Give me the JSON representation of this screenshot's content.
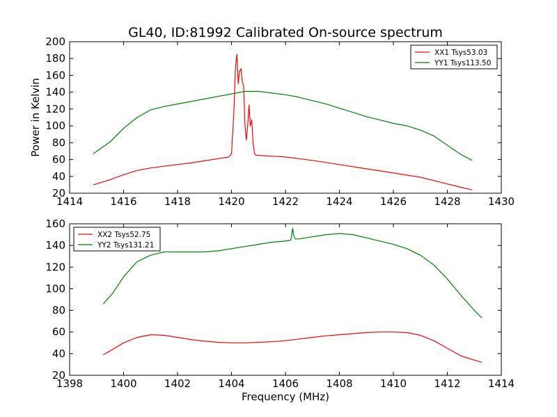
{
  "chart_data": [
    {
      "type": "line",
      "title": "GL40, ID:81992 Calibrated On-source spectrum",
      "xlabel": "",
      "ylabel": "Power in Kelvin",
      "xlim": [
        1414,
        1430
      ],
      "ylim": [
        20,
        200
      ],
      "xticks": [
        1414,
        1416,
        1418,
        1420,
        1422,
        1424,
        1426,
        1428,
        1430
      ],
      "yticks": [
        20,
        40,
        60,
        80,
        100,
        120,
        140,
        160,
        180,
        200
      ],
      "grid": false,
      "legend": "top-right",
      "series": [
        {
          "name": "XX1 Tsys53.03",
          "color": "#ff0000",
          "x": [
            1414.88,
            1415.5,
            1416.0,
            1416.5,
            1417.0,
            1417.5,
            1418.0,
            1418.5,
            1419.0,
            1419.5,
            1419.9,
            1420.0,
            1420.08,
            1420.15,
            1420.2,
            1420.25,
            1420.3,
            1420.35,
            1420.4,
            1420.45,
            1420.5,
            1420.55,
            1420.6,
            1420.65,
            1420.7,
            1420.75,
            1420.8,
            1420.85,
            1420.9,
            1421.0,
            1421.5,
            1422.0,
            1422.5,
            1423.0,
            1423.5,
            1424.0,
            1424.5,
            1425.0,
            1425.5,
            1426.0,
            1426.5,
            1427.0,
            1427.5,
            1428.0,
            1428.5,
            1428.92
          ],
          "y": [
            30,
            36,
            42,
            47,
            50,
            52,
            54,
            56,
            58.5,
            61,
            63,
            67,
            110,
            170,
            185,
            150,
            165,
            168,
            152,
            148,
            100,
            83,
            100,
            125,
            100,
            107,
            80,
            68,
            65,
            65,
            64,
            63,
            61,
            59,
            56.5,
            54,
            51.5,
            49,
            46.5,
            44,
            41.5,
            39,
            35,
            31,
            27,
            24
          ]
        },
        {
          "name": "YY1 Tsys113.50",
          "color": "#007f00",
          "x": [
            1414.88,
            1415.5,
            1416.0,
            1416.5,
            1417.0,
            1417.5,
            1418.0,
            1418.5,
            1419.0,
            1419.5,
            1420.0,
            1420.5,
            1421.0,
            1421.5,
            1422.0,
            1422.5,
            1423.0,
            1423.5,
            1424.0,
            1424.5,
            1425.0,
            1425.5,
            1426.0,
            1426.5,
            1427.0,
            1427.5,
            1428.0,
            1428.5,
            1428.92
          ],
          "y": [
            67,
            81,
            97,
            110,
            119,
            123,
            126,
            129,
            132,
            135,
            138,
            141,
            141,
            139,
            137,
            134,
            130,
            126,
            121,
            116,
            111,
            107,
            103,
            100,
            95,
            88,
            77,
            66,
            59
          ]
        }
      ]
    },
    {
      "type": "line",
      "title": "",
      "xlabel": "Frequency (MHz)",
      "ylabel": "",
      "xlim": [
        1398,
        1414
      ],
      "ylim": [
        20,
        160
      ],
      "xticks": [
        1398,
        1400,
        1402,
        1404,
        1406,
        1408,
        1410,
        1412,
        1414
      ],
      "yticks": [
        20,
        40,
        60,
        80,
        100,
        120,
        140,
        160
      ],
      "grid": false,
      "legend": "top-left",
      "series": [
        {
          "name": "XX2 Tsys52.75",
          "color": "#ff0000",
          "x": [
            1399.25,
            1399.6,
            1400.0,
            1400.5,
            1401.0,
            1401.5,
            1402.0,
            1402.5,
            1403.0,
            1403.5,
            1404.0,
            1404.5,
            1405.0,
            1405.5,
            1406.0,
            1406.5,
            1407.0,
            1407.5,
            1408.0,
            1408.5,
            1409.0,
            1409.5,
            1410.0,
            1410.5,
            1411.0,
            1411.5,
            1412.0,
            1412.5,
            1413.0,
            1413.28
          ],
          "y": [
            39,
            44,
            50,
            55,
            57.5,
            57,
            55,
            53,
            51.5,
            50.5,
            50,
            50,
            50.5,
            51,
            52,
            53.5,
            55,
            56.5,
            57.5,
            58.5,
            59.5,
            60,
            60,
            59.5,
            57,
            52,
            45,
            38,
            34,
            32
          ]
        },
        {
          "name": "YY2 Tsys131.21",
          "color": "#007f00",
          "x": [
            1399.25,
            1399.6,
            1400.0,
            1400.5,
            1401.0,
            1401.5,
            1402.0,
            1402.5,
            1403.0,
            1403.5,
            1404.0,
            1404.5,
            1405.0,
            1405.5,
            1406.0,
            1406.2,
            1406.27,
            1406.3,
            1406.36,
            1406.5,
            1407.0,
            1407.5,
            1408.0,
            1408.5,
            1409.0,
            1409.5,
            1410.0,
            1410.5,
            1411.0,
            1411.5,
            1412.0,
            1412.5,
            1413.0,
            1413.28
          ],
          "y": [
            86,
            96,
            111,
            125,
            131,
            134,
            134,
            134,
            134,
            135,
            137,
            139,
            141,
            143,
            144,
            145,
            156,
            150,
            146,
            146,
            148,
            150,
            151,
            150,
            147,
            144,
            141,
            137,
            131,
            122,
            109,
            94,
            80,
            73
          ]
        }
      ]
    }
  ]
}
